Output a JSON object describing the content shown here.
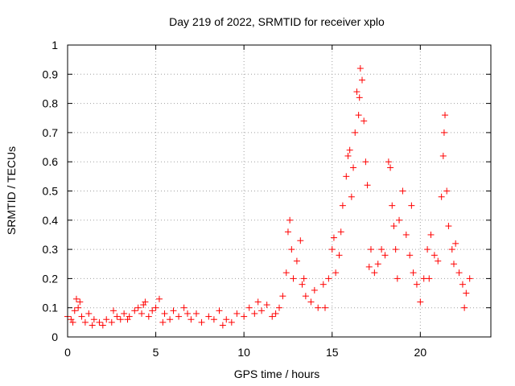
{
  "chart_data": {
    "type": "scatter",
    "title": "Day 219 of 2022, SRMTID for receiver xplo",
    "xlabel": "GPS time / hours",
    "ylabel": "SRMTID / TECUs",
    "xlim": [
      0,
      24
    ],
    "ylim": [
      0,
      1
    ],
    "x_ticks": [
      0,
      5,
      10,
      15,
      20
    ],
    "x_tick_labels": [
      "0",
      "5",
      "10",
      "15",
      "20"
    ],
    "y_ticks": [
      0,
      0.1,
      0.2,
      0.3,
      0.4,
      0.5,
      0.6,
      0.7,
      0.8,
      0.9,
      1
    ],
    "y_tick_labels": [
      "0",
      "0.1",
      "0.2",
      "0.3",
      "0.4",
      "0.5",
      "0.6",
      "0.7",
      "0.8",
      "0.9",
      "1"
    ],
    "grid": true,
    "marker": "+",
    "color": "#ff0000",
    "series": [
      {
        "name": "SRMTID",
        "x": [
          0.0,
          0.2,
          0.4,
          0.5,
          0.6,
          0.8,
          1.0,
          1.2,
          1.5,
          1.8,
          2.0,
          2.2,
          2.5,
          2.8,
          3.0,
          3.2,
          3.5,
          3.8,
          4.0,
          4.2,
          4.4,
          4.6,
          4.8,
          5.0,
          5.2,
          5.5,
          5.8,
          6.0,
          6.3,
          6.6,
          7.0,
          7.3,
          7.6,
          8.0,
          8.3,
          8.6,
          9.0,
          9.3,
          9.6,
          10.0,
          10.3,
          10.6,
          11.0,
          11.3,
          11.6,
          12.0,
          12.2,
          12.4,
          12.5,
          12.6,
          12.8,
          13.0,
          13.2,
          13.3,
          13.5,
          13.8,
          14.0,
          14.2,
          14.5,
          14.8,
          15.0,
          15.1,
          15.2,
          15.4,
          15.6,
          15.8,
          15.9,
          16.0,
          16.1,
          16.2,
          16.3,
          16.4,
          16.5,
          16.6,
          16.7,
          16.8,
          16.9,
          17.0,
          17.2,
          17.4,
          17.6,
          17.8,
          18.0,
          18.2,
          18.3,
          18.4,
          18.5,
          18.6,
          18.8,
          19.0,
          19.2,
          19.4,
          19.6,
          19.8,
          20.0,
          20.2,
          20.4,
          20.6,
          20.8,
          21.0,
          21.2,
          21.3,
          21.4,
          21.5,
          21.6,
          21.8,
          22.0,
          22.2,
          22.4,
          22.6,
          22.8,
          0.3,
          0.7,
          1.4,
          2.6,
          3.4,
          4.3,
          5.4,
          6.8,
          8.8,
          10.8,
          11.8,
          12.7,
          13.4,
          14.6,
          15.5,
          16.55,
          17.1,
          18.7,
          19.5,
          20.5,
          21.35,
          21.9,
          22.5
        ],
        "y": [
          0.07,
          0.06,
          0.09,
          0.13,
          0.1,
          0.07,
          0.05,
          0.08,
          0.06,
          0.05,
          0.04,
          0.06,
          0.05,
          0.07,
          0.06,
          0.08,
          0.07,
          0.09,
          0.1,
          0.08,
          0.12,
          0.07,
          0.09,
          0.1,
          0.13,
          0.08,
          0.06,
          0.09,
          0.07,
          0.1,
          0.06,
          0.08,
          0.05,
          0.07,
          0.06,
          0.09,
          0.06,
          0.05,
          0.08,
          0.07,
          0.1,
          0.08,
          0.09,
          0.11,
          0.07,
          0.1,
          0.14,
          0.22,
          0.36,
          0.4,
          0.2,
          0.26,
          0.33,
          0.18,
          0.14,
          0.12,
          0.16,
          0.1,
          0.18,
          0.2,
          0.3,
          0.34,
          0.22,
          0.28,
          0.45,
          0.55,
          0.62,
          0.64,
          0.48,
          0.58,
          0.7,
          0.84,
          0.76,
          0.92,
          0.88,
          0.74,
          0.6,
          0.52,
          0.3,
          0.22,
          0.25,
          0.3,
          0.28,
          0.6,
          0.58,
          0.45,
          0.38,
          0.3,
          0.4,
          0.5,
          0.35,
          0.28,
          0.22,
          0.18,
          0.12,
          0.2,
          0.3,
          0.35,
          0.28,
          0.26,
          0.48,
          0.62,
          0.76,
          0.5,
          0.38,
          0.3,
          0.32,
          0.22,
          0.18,
          0.15,
          0.2,
          0.05,
          0.12,
          0.04,
          0.09,
          0.06,
          0.11,
          0.05,
          0.08,
          0.04,
          0.12,
          0.08,
          0.3,
          0.2,
          0.1,
          0.36,
          0.82,
          0.24,
          0.2,
          0.45,
          0.2,
          0.7,
          0.25,
          0.1
        ]
      }
    ]
  }
}
